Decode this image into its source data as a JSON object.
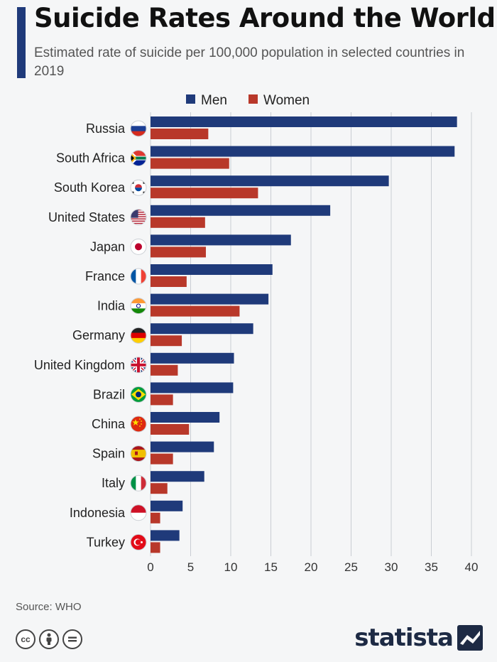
{
  "header": {
    "title": "Suicide Rates Around the World",
    "subtitle": "Estimated rate of suicide per 100,000 population in selected countries in 2019"
  },
  "colors": {
    "accent": "#1f3a7a",
    "men": "#1f3a7a",
    "women": "#b8382a",
    "grid": "#c9cdd3"
  },
  "chart_data": {
    "type": "bar",
    "orientation": "horizontal",
    "categories": [
      "Russia",
      "South Africa",
      "South Korea",
      "United States",
      "Japan",
      "France",
      "India",
      "Germany",
      "United Kingdom",
      "Brazil",
      "China",
      "Spain",
      "Italy",
      "Indonesia",
      "Turkey"
    ],
    "series": [
      {
        "name": "Men",
        "values": [
          38.2,
          37.9,
          29.7,
          22.4,
          17.5,
          15.2,
          14.7,
          12.8,
          10.4,
          10.3,
          8.6,
          7.9,
          6.7,
          4.0,
          3.6
        ]
      },
      {
        "name": "Women",
        "values": [
          7.2,
          9.8,
          13.4,
          6.8,
          6.9,
          4.5,
          11.1,
          3.9,
          3.4,
          2.8,
          4.8,
          2.8,
          2.1,
          1.2,
          1.2
        ]
      }
    ],
    "x_ticks": [
      0,
      5,
      10,
      15,
      20,
      25,
      30,
      35,
      40
    ],
    "xlim": [
      0,
      40
    ],
    "legend_position": "top-center",
    "grid": true
  },
  "flags": [
    "russia-flag-icon",
    "south-africa-flag-icon",
    "south-korea-flag-icon",
    "united-states-flag-icon",
    "japan-flag-icon",
    "france-flag-icon",
    "india-flag-icon",
    "germany-flag-icon",
    "united-kingdom-flag-icon",
    "brazil-flag-icon",
    "china-flag-icon",
    "spain-flag-icon",
    "italy-flag-icon",
    "indonesia-flag-icon",
    "turkey-flag-icon"
  ],
  "footer": {
    "source": "Source: WHO",
    "brand": "statista",
    "license_icons": [
      "creative-commons-icon",
      "attribution-icon",
      "no-derivatives-icon"
    ]
  }
}
